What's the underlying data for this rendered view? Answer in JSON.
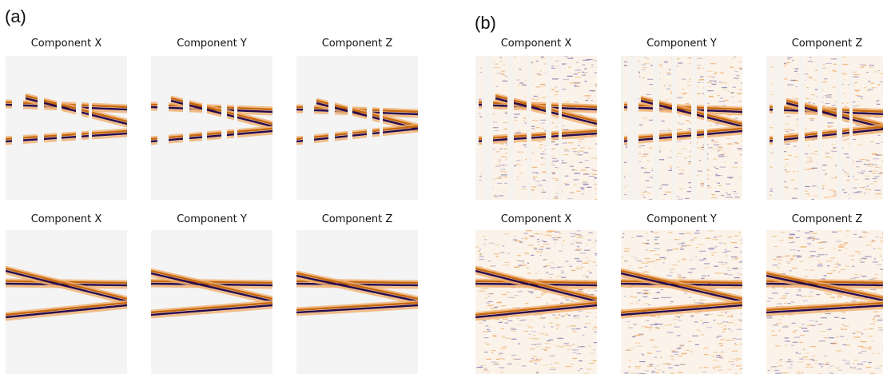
{
  "panels": [
    {
      "label": "(a)",
      "rows": [
        [
          "Component X",
          "Component Y",
          "Component Z"
        ],
        [
          "Component X",
          "Component Y",
          "Component Z"
        ]
      ]
    },
    {
      "label": "(b)",
      "rows": [
        [
          "Component X",
          "Component Y",
          "Component Z"
        ],
        [
          "Component X",
          "Component Y",
          "Component Z"
        ]
      ]
    }
  ]
}
